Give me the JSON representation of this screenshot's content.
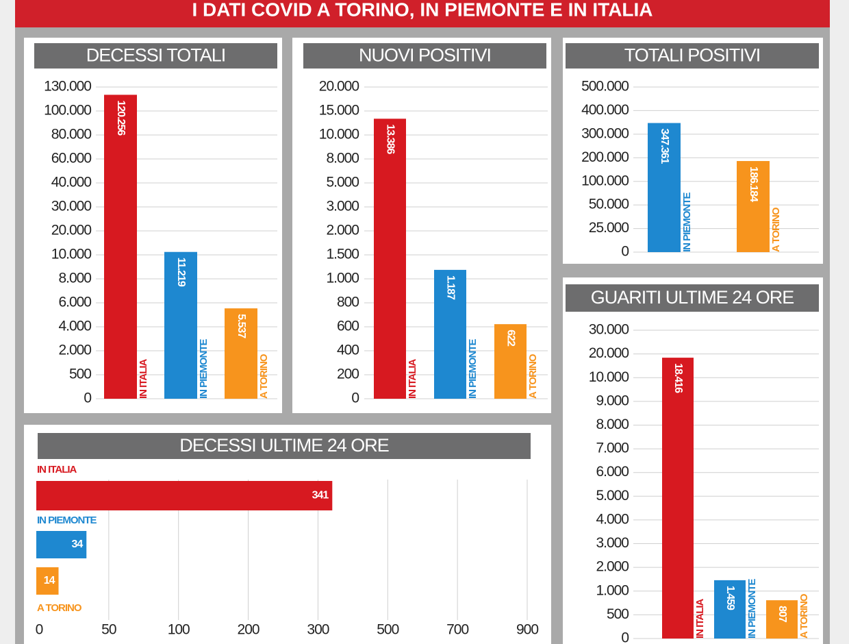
{
  "title": "I DATI COVID A TORINO, IN PIEMONTE E IN ITALIA",
  "chart_data": [
    {
      "type": "bar",
      "title": "DECESSI TOTALI",
      "categories": [
        "IN ITALIA",
        "IN PIEMONTE",
        "A TORINO"
      ],
      "values": [
        120256,
        11219,
        5537
      ],
      "value_labels": [
        "120.256",
        "11.219",
        "5.537"
      ],
      "colors": [
        "#d71920",
        "#1e88d0",
        "#f7941d"
      ],
      "ylim": [
        0,
        130000
      ],
      "yticks": [
        0,
        500,
        {
          "value": 2000,
          "label": "2.000"
        },
        {
          "value": 4000,
          "label": "4.000"
        },
        {
          "value": 6000,
          "label": "6.000"
        },
        {
          "value": 8000,
          "label": "8.000"
        },
        {
          "value": 10000,
          "label": "10.000"
        },
        {
          "value": 20000,
          "label": "20.000"
        },
        {
          "value": 30000,
          "label": "30.000"
        },
        {
          "value": 40000,
          "label": "40.000"
        },
        {
          "value": 60000,
          "label": "60.000"
        },
        {
          "value": 80000,
          "label": "80.000"
        },
        {
          "value": 100000,
          "label": "100.000"
        },
        {
          "value": 130000,
          "label": "130.000"
        }
      ],
      "grid": true
    },
    {
      "type": "bar",
      "title": "NUOVI POSITIVI",
      "categories": [
        "IN ITALIA",
        "IN PIEMONTE",
        "A TORINO"
      ],
      "values": [
        13386,
        1187,
        622
      ],
      "value_labels": [
        "13.386",
        "1.187",
        "622"
      ],
      "colors": [
        "#d71920",
        "#1e88d0",
        "#f7941d"
      ],
      "ylim": [
        0,
        20000
      ],
      "yticks": [
        0,
        200,
        400,
        600,
        800,
        {
          "value": 1000,
          "label": "1.000"
        },
        {
          "value": 1500,
          "label": "1.500"
        },
        {
          "value": 2000,
          "label": "2.000"
        },
        {
          "value": 3000,
          "label": "3.000"
        },
        {
          "value": 5000,
          "label": "5.000"
        },
        {
          "value": 8000,
          "label": "8.000"
        },
        {
          "value": 10000,
          "label": "10.000"
        },
        {
          "value": 15000,
          "label": "15.000"
        },
        {
          "value": 20000,
          "label": "20.000"
        }
      ],
      "grid": true
    },
    {
      "type": "bar",
      "title": "TOTALI POSITIVI",
      "categories": [
        "IN PIEMONTE",
        "A TORINO"
      ],
      "values": [
        347361,
        186184
      ],
      "value_labels": [
        "347.361",
        "186.184"
      ],
      "colors": [
        "#1e88d0",
        "#f7941d"
      ],
      "ylim": [
        0,
        500000
      ],
      "yticks": [
        0,
        {
          "value": 25000,
          "label": "25.000"
        },
        {
          "value": 50000,
          "label": "50.000"
        },
        {
          "value": 100000,
          "label": "100.000"
        },
        {
          "value": 200000,
          "label": "200.000"
        },
        {
          "value": 300000,
          "label": "300.000"
        },
        {
          "value": 400000,
          "label": "400.000"
        },
        {
          "value": 500000,
          "label": "500.000"
        }
      ],
      "grid": true
    },
    {
      "type": "bar",
      "title": "GUARITI ULTIME 24 ORE",
      "categories": [
        "IN ITALIA",
        "IN PIEMONTE",
        "A TORINO"
      ],
      "values": [
        18416,
        1459,
        807
      ],
      "value_labels": [
        "18.416",
        "1.459",
        "807"
      ],
      "colors": [
        "#d71920",
        "#1e88d0",
        "#f7941d"
      ],
      "ylim": [
        0,
        30000
      ],
      "yticks": [
        0,
        500,
        {
          "value": 1000,
          "label": "1.000"
        },
        {
          "value": 2000,
          "label": "2.000"
        },
        {
          "value": 3000,
          "label": "3.000"
        },
        {
          "value": 4000,
          "label": "4.000"
        },
        {
          "value": 5000,
          "label": "5.000"
        },
        {
          "value": 6000,
          "label": "6.000"
        },
        {
          "value": 7000,
          "label": "7.000"
        },
        {
          "value": 8000,
          "label": "8.000"
        },
        {
          "value": 9000,
          "label": "9.000"
        },
        {
          "value": 10000,
          "label": "10.000"
        },
        {
          "value": 20000,
          "label": "20.000"
        },
        {
          "value": 30000,
          "label": "30.000"
        }
      ],
      "grid": true
    },
    {
      "type": "hbar",
      "title": "DECESSI ULTIME 24 ORE",
      "categories": [
        "IN ITALIA",
        "IN PIEMONTE",
        "A TORINO"
      ],
      "values": [
        341,
        34,
        14
      ],
      "colors": [
        "#d71920",
        "#1e88d0",
        "#f7941d"
      ],
      "xlim": [
        0,
        900
      ],
      "xticks": [
        0,
        50,
        100,
        200,
        300,
        500,
        700,
        900
      ],
      "grid": true
    }
  ]
}
